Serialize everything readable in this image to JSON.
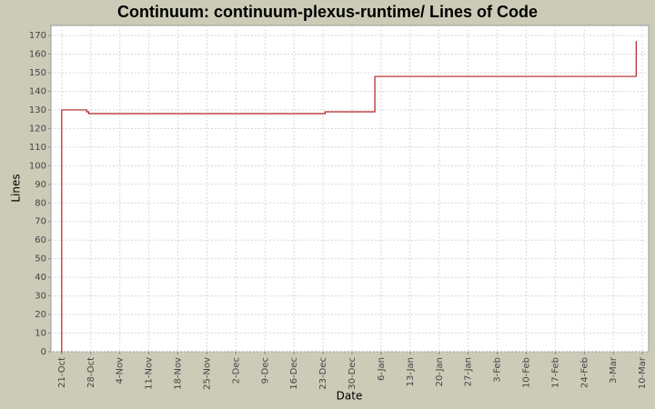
{
  "chart_data": {
    "type": "line",
    "step": true,
    "title": "Continuum: continuum-plexus-runtime/ Lines of Code",
    "x_label": "Date",
    "y_label": "Lines",
    "x": [
      -0.2,
      0,
      6,
      6.5,
      63.5,
      75.5,
      138.5
    ],
    "series": [
      {
        "name": "Lines",
        "color": "#b22222",
        "values": [
          0,
          130,
          129,
          128,
          129,
          148,
          167
        ]
      }
    ],
    "xlim": [
      -2.6,
      141.5
    ],
    "xticks": [
      {
        "value": 0,
        "label": "21-Oct"
      },
      {
        "value": 7,
        "label": "28-Oct"
      },
      {
        "value": 14,
        "label": "4-Nov"
      },
      {
        "value": 21,
        "label": "11-Nov"
      },
      {
        "value": 28,
        "label": "18-Nov"
      },
      {
        "value": 35,
        "label": "25-Nov"
      },
      {
        "value": 42,
        "label": "2-Dec"
      },
      {
        "value": 49,
        "label": "9-Dec"
      },
      {
        "value": 56,
        "label": "16-Dec"
      },
      {
        "value": 63,
        "label": "23-Dec"
      },
      {
        "value": 70,
        "label": "30-Dec"
      },
      {
        "value": 77,
        "label": "6-Jan"
      },
      {
        "value": 84,
        "label": "13-Jan"
      },
      {
        "value": 91,
        "label": "20-Jan"
      },
      {
        "value": 98,
        "label": "27-Jan"
      },
      {
        "value": 105,
        "label": "3-Feb"
      },
      {
        "value": 112,
        "label": "10-Feb"
      },
      {
        "value": 119,
        "label": "17-Feb"
      },
      {
        "value": 126,
        "label": "24-Feb"
      },
      {
        "value": 133,
        "label": "3-Mar"
      },
      {
        "value": 140,
        "label": "10-Mar"
      }
    ],
    "ylim": [
      0,
      175.4
    ],
    "yticks": [
      0,
      10,
      20,
      30,
      40,
      50,
      60,
      70,
      80,
      90,
      100,
      110,
      120,
      130,
      140,
      150,
      160,
      170
    ],
    "grid": true
  }
}
